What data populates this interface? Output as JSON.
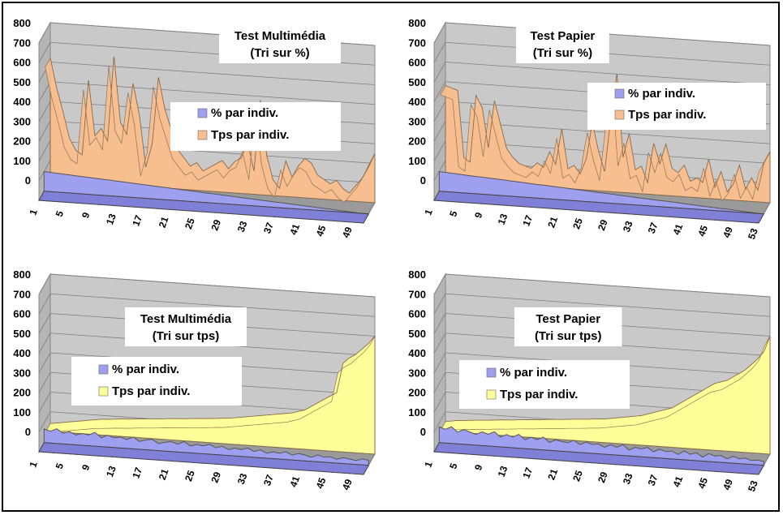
{
  "colors": {
    "frame": "#000000",
    "wall": "#c9c9c9",
    "gridline": "#7f7f7f",
    "pct_series": "#9f9ff0",
    "tps_orange": "#f7be90",
    "tps_yellow": "#ffff99"
  },
  "chart_data": [
    {
      "type": "area",
      "view": "3d",
      "title": "Test Multimédia",
      "subtitle": "(Tri sur %)",
      "legend": [
        "% par indiv.",
        "Tps par indiv."
      ],
      "legend_position": "center-right",
      "y_ticks": [
        "800",
        "700",
        "600",
        "500",
        "400",
        "300",
        "200",
        "100",
        "0"
      ],
      "ylim": [
        0,
        800
      ],
      "x_ticks": [
        "1",
        "5",
        "9",
        "13",
        "17",
        "21",
        "25",
        "29",
        "33",
        "37",
        "41",
        "45",
        "49"
      ],
      "grid": true,
      "series": [
        {
          "name": "% par indiv.",
          "color": "#9f9ff0",
          "values": [
            100,
            98,
            96,
            94,
            92,
            90,
            88,
            86,
            84,
            82,
            80,
            78,
            76,
            74,
            72,
            70,
            68,
            66,
            64,
            62,
            60,
            58,
            56,
            54,
            52,
            50,
            48,
            46,
            44,
            42,
            40,
            38,
            36,
            34,
            32,
            30,
            28,
            26,
            24,
            22,
            20,
            18,
            16,
            14,
            12,
            10,
            8,
            6,
            4,
            2,
            1,
            0
          ]
        },
        {
          "name": "Tps par indiv.",
          "color": "#f7be90",
          "values": [
            620,
            470,
            350,
            220,
            160,
            140,
            520,
            240,
            280,
            220,
            650,
            320,
            260,
            520,
            360,
            100,
            220,
            560,
            400,
            300,
            200,
            160,
            120,
            140,
            100,
            120,
            140,
            160,
            120,
            160,
            180,
            260,
            120,
            480,
            200,
            80,
            40,
            180,
            100,
            160,
            200,
            180,
            120,
            100,
            80,
            100,
            60,
            40,
            80,
            120,
            180,
            250
          ]
        }
      ]
    },
    {
      "type": "area",
      "view": "3d",
      "title": "Test Papier",
      "subtitle": "(Tri sur %)",
      "legend": [
        "% par indiv.",
        "Tps par indiv."
      ],
      "legend_position": "right",
      "y_ticks": [
        "800",
        "700",
        "600",
        "500",
        "400",
        "300",
        "200",
        "100",
        "0"
      ],
      "ylim": [
        0,
        800
      ],
      "x_ticks": [
        "1",
        "5",
        "9",
        "13",
        "17",
        "21",
        "25",
        "29",
        "33",
        "37",
        "41",
        "45",
        "49",
        "53"
      ],
      "grid": true,
      "series": [
        {
          "name": "% par indiv.",
          "color": "#9f9ff0",
          "values": [
            100,
            98,
            96,
            94,
            92,
            90,
            88,
            87,
            85,
            83,
            81,
            79,
            77,
            75,
            73,
            71,
            69,
            68,
            66,
            64,
            62,
            60,
            58,
            56,
            54,
            52,
            50,
            49,
            47,
            45,
            43,
            41,
            39,
            37,
            35,
            33,
            31,
            30,
            28,
            26,
            24,
            22,
            20,
            18,
            16,
            14,
            12,
            11,
            9,
            7,
            5,
            3,
            1,
            0
          ]
        },
        {
          "name": "Tps par indiv.",
          "color": "#f7be90",
          "values": [
            480,
            470,
            460,
            120,
            100,
            440,
            380,
            180,
            420,
            300,
            180,
            140,
            110,
            100,
            90,
            120,
            100,
            180,
            120,
            300,
            100,
            120,
            80,
            160,
            340,
            200,
            100,
            380,
            600,
            180,
            300,
            120,
            140,
            60,
            260,
            160,
            260,
            140,
            120,
            160,
            80,
            100,
            80,
            200,
            60,
            140,
            40,
            80,
            180,
            60,
            120,
            60,
            200,
            260
          ]
        }
      ]
    },
    {
      "type": "area",
      "view": "3d",
      "title": "Test Multimédia",
      "subtitle": "(Tri sur tps)",
      "legend": [
        "% par indiv.",
        "Tps par indiv."
      ],
      "legend_position": "left",
      "y_ticks": [
        "800",
        "700",
        "600",
        "500",
        "400",
        "300",
        "200",
        "100",
        "0"
      ],
      "ylim": [
        0,
        800
      ],
      "x_ticks": [
        "1",
        "5",
        "9",
        "13",
        "17",
        "21",
        "25",
        "29",
        "33",
        "37",
        "41",
        "45",
        "49"
      ],
      "grid": true,
      "series": [
        {
          "name": "% par indiv.",
          "color": "#9f9ff0",
          "values": [
            70,
            60,
            75,
            55,
            65,
            50,
            60,
            55,
            70,
            45,
            60,
            50,
            55,
            45,
            60,
            40,
            50,
            55,
            35,
            45,
            50,
            40,
            55,
            35,
            45,
            40,
            50,
            35,
            45,
            30,
            40,
            35,
            45,
            30,
            40,
            25,
            35,
            30,
            40,
            25,
            35,
            30,
            20,
            35,
            25,
            30,
            20,
            30,
            25,
            20,
            30,
            25
          ]
        },
        {
          "name": "Tps par indiv.",
          "color": "#ffff99",
          "values": [
            40,
            45,
            50,
            55,
            60,
            65,
            70,
            75,
            80,
            82,
            85,
            88,
            90,
            92,
            95,
            98,
            100,
            102,
            105,
            108,
            110,
            112,
            115,
            118,
            120,
            122,
            125,
            128,
            130,
            135,
            140,
            145,
            150,
            155,
            160,
            165,
            170,
            175,
            180,
            190,
            200,
            220,
            240,
            260,
            280,
            300,
            450,
            480,
            500,
            530,
            560,
            600
          ]
        }
      ]
    },
    {
      "type": "area",
      "view": "3d",
      "title": "Test Papier",
      "subtitle": "(Tri sur tps)",
      "legend": [
        "% par indiv.",
        "Tps par indiv."
      ],
      "legend_position": "left",
      "y_ticks": [
        "800",
        "700",
        "600",
        "500",
        "400",
        "300",
        "200",
        "100",
        "0"
      ],
      "ylim": [
        0,
        800
      ],
      "x_ticks": [
        "1",
        "5",
        "9",
        "13",
        "17",
        "21",
        "25",
        "29",
        "33",
        "37",
        "41",
        "45",
        "49",
        "53"
      ],
      "grid": true,
      "series": [
        {
          "name": "% par indiv.",
          "color": "#9f9ff0",
          "values": [
            80,
            70,
            85,
            60,
            75,
            65,
            55,
            70,
            60,
            75,
            50,
            65,
            55,
            70,
            45,
            60,
            50,
            65,
            40,
            55,
            50,
            45,
            60,
            40,
            55,
            45,
            50,
            35,
            50,
            40,
            55,
            30,
            45,
            40,
            50,
            30,
            45,
            35,
            40,
            25,
            45,
            30,
            40,
            20,
            40,
            30,
            35,
            20,
            35,
            25,
            30,
            20,
            25,
            20
          ]
        },
        {
          "name": "Tps par indiv.",
          "color": "#ffff99",
          "values": [
            50,
            55,
            60,
            62,
            65,
            68,
            70,
            72,
            75,
            78,
            80,
            82,
            85,
            88,
            90,
            92,
            95,
            98,
            100,
            102,
            105,
            108,
            110,
            112,
            115,
            118,
            120,
            125,
            130,
            135,
            140,
            145,
            150,
            160,
            170,
            180,
            190,
            200,
            220,
            240,
            260,
            280,
            300,
            320,
            340,
            350,
            360,
            380,
            400,
            420,
            450,
            480,
            520,
            600
          ]
        }
      ]
    }
  ]
}
